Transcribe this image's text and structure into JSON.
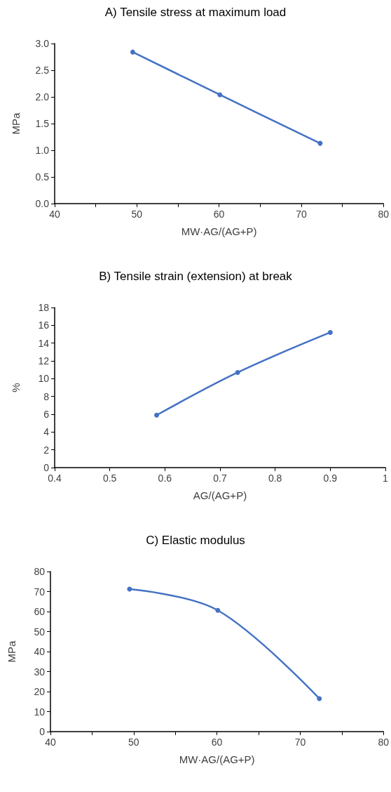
{
  "chart_data": [
    {
      "type": "line",
      "title": "A) Tensile stress at maximum load",
      "xlabel": "MW·AG/(AG+P)",
      "ylabel": "MPa",
      "x": [
        49.5,
        60.1,
        72.3
      ],
      "series": [
        {
          "color": "#4472c4",
          "values": [
            2.84,
            2.04,
            1.13
          ]
        }
      ],
      "xlim": [
        40,
        80
      ],
      "xticks": [
        40,
        {
          "value": 45,
          "label": null
        },
        50,
        {
          "value": 55,
          "label": null
        },
        60,
        {
          "value": 65,
          "label": null
        },
        70,
        {
          "value": 75,
          "label": null
        },
        80
      ],
      "ylim": [
        0,
        3
      ],
      "yticks": [
        {
          "value": 0,
          "label": "0.0"
        },
        {
          "value": 0.5,
          "label": "0.5"
        },
        {
          "value": 1,
          "label": "1.0"
        },
        {
          "value": 1.5,
          "label": "1.5"
        },
        {
          "value": 2,
          "label": "2.0"
        },
        {
          "value": 2.5,
          "label": "2.5"
        },
        {
          "value": 3,
          "label": "3.0"
        }
      ],
      "marker": "circle",
      "line_style": "solid"
    },
    {
      "type": "line",
      "title": "B) Tensile strain (extension) at break",
      "xlabel": "AG/(AG+P)",
      "ylabel": "%",
      "x": [
        0.585,
        0.732,
        0.9
      ],
      "series": [
        {
          "color": "#4472c4",
          "values": [
            5.9,
            10.7,
            15.2
          ]
        }
      ],
      "xlim": [
        0.4,
        1
      ],
      "xticks": [
        0.4,
        0.5,
        0.6,
        0.7,
        0.8,
        0.9,
        1
      ],
      "ylim": [
        0,
        18
      ],
      "yticks": [
        0,
        2,
        4,
        6,
        8,
        10,
        12,
        14,
        16,
        18
      ],
      "marker": "circle",
      "line_style": "solid"
    },
    {
      "type": "line",
      "title": "C) Elastic modulus",
      "xlabel": "MW·AG/(AG+P)",
      "ylabel": "MPa",
      "x": [
        49.5,
        60.1,
        72.3
      ],
      "series": [
        {
          "color": "#4472c4",
          "values": [
            71.2,
            60.6,
            16.5
          ]
        }
      ],
      "xlim": [
        40,
        80
      ],
      "xticks": [
        40,
        {
          "value": 45,
          "label": null
        },
        50,
        {
          "value": 55,
          "label": null
        },
        60,
        {
          "value": 65,
          "label": null
        },
        70,
        {
          "value": 75,
          "label": null
        },
        80
      ],
      "ylim": [
        0,
        80
      ],
      "yticks": [
        0,
        10,
        20,
        30,
        40,
        50,
        60,
        70,
        80
      ],
      "marker": "circle",
      "line_style": "solid"
    }
  ]
}
